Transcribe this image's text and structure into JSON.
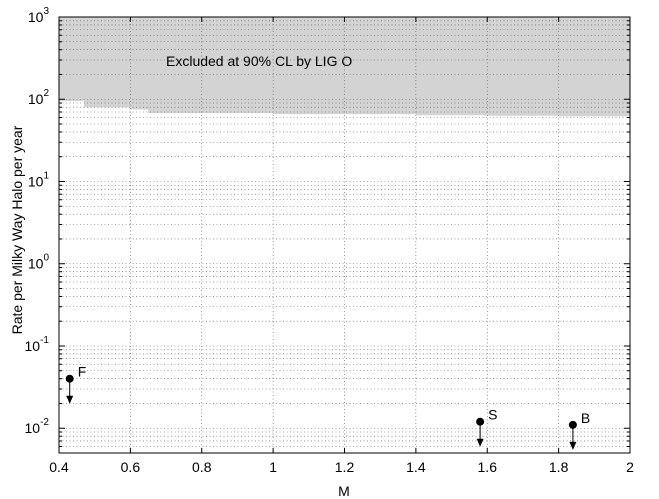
{
  "chart_data": {
    "type": "scatter",
    "xlabel": "M",
    "ylabel": "Rate per Milky Way Halo per year",
    "xlim": [
      0.4,
      2.0
    ],
    "ylim": [
      0.005,
      1000
    ],
    "yscale": "log",
    "grid": true,
    "x_ticks": [
      "0.4",
      "0.6",
      "0.8",
      "1",
      "1.2",
      "1.4",
      "1.6",
      "1.8",
      "2"
    ],
    "y_ticks": [
      {
        "base": "10",
        "exp": "-2"
      },
      {
        "base": "10",
        "exp": "-1"
      },
      {
        "base": "10",
        "exp": "0"
      },
      {
        "base": "10",
        "exp": "1"
      },
      {
        "base": "10",
        "exp": "2"
      },
      {
        "base": "10",
        "exp": "3"
      }
    ],
    "excluded_region": {
      "label": "Excluded at 90% CL by LIG O",
      "color": "#d3d3d3",
      "boundary": [
        {
          "x": 0.4,
          "y": 95
        },
        {
          "x": 0.47,
          "y": 80
        },
        {
          "x": 0.6,
          "y": 75
        },
        {
          "x": 0.65,
          "y": 68
        },
        {
          "x": 0.8,
          "y": 68
        },
        {
          "x": 1.0,
          "y": 66
        },
        {
          "x": 1.2,
          "y": 66
        },
        {
          "x": 1.4,
          "y": 64
        },
        {
          "x": 1.6,
          "y": 63
        },
        {
          "x": 1.8,
          "y": 62
        },
        {
          "x": 2.0,
          "y": 60
        }
      ]
    },
    "points": [
      {
        "label": "F",
        "x": 0.43,
        "y": 0.04
      },
      {
        "label": "S",
        "x": 1.58,
        "y": 0.012
      },
      {
        "label": "B",
        "x": 1.84,
        "y": 0.011
      }
    ]
  }
}
